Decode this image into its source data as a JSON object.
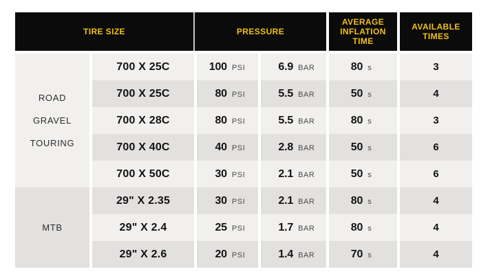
{
  "colors": {
    "header_bg": "#0b0b0b",
    "header_text_yellow": "#f2c117",
    "row_light": "#f1f0ef",
    "row_dark": "#e3e1e0",
    "value_text": "#121212",
    "unit_text": "#4a4a4a",
    "page_bg": "#ffffff"
  },
  "chart_data": {
    "type": "table",
    "columns": [
      "TIRE SIZE",
      "PRESSURE",
      "AVERAGE INFLATION TIME",
      "AVAILABLE TIMES"
    ],
    "units": {
      "psi": "PSI",
      "bar": "BAR",
      "seconds": "s"
    },
    "groups": [
      {
        "label": "ROAD GRAVEL TOURING",
        "lines": [
          "ROAD",
          "GRAVEL",
          "TOURING"
        ],
        "row_span": 5
      },
      {
        "label": "MTB",
        "lines": [
          "MTB"
        ],
        "row_span": 3
      }
    ],
    "rows": [
      {
        "group": "ROAD GRAVEL TOURING",
        "tire": "700 X 25C",
        "psi": 100,
        "bar": 6.9,
        "time_s": 80,
        "available": 3
      },
      {
        "group": "ROAD GRAVEL TOURING",
        "tire": "700 X 25C",
        "psi": 80,
        "bar": 5.5,
        "time_s": 50,
        "available": 4
      },
      {
        "group": "ROAD GRAVEL TOURING",
        "tire": "700 X 28C",
        "psi": 80,
        "bar": 5.5,
        "time_s": 80,
        "available": 3
      },
      {
        "group": "ROAD GRAVEL TOURING",
        "tire": "700 X 40C",
        "psi": 40,
        "bar": 2.8,
        "time_s": 50,
        "available": 6
      },
      {
        "group": "ROAD GRAVEL TOURING",
        "tire": "700 X 50C",
        "psi": 30,
        "bar": 2.1,
        "time_s": 50,
        "available": 6
      },
      {
        "group": "MTB",
        "tire": "29\" X 2.35",
        "psi": 30,
        "bar": 2.1,
        "time_s": 80,
        "available": 4
      },
      {
        "group": "MTB",
        "tire": "29\" X 2.4",
        "psi": 25,
        "bar": 1.7,
        "time_s": 80,
        "available": 4
      },
      {
        "group": "MTB",
        "tire": "29\" X 2.6",
        "psi": 20,
        "bar": 1.4,
        "time_s": 70,
        "available": 4
      }
    ]
  }
}
